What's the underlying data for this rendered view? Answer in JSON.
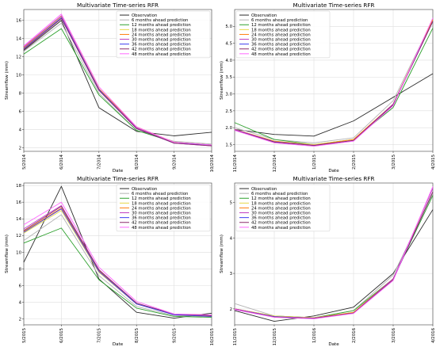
{
  "legend_labels": [
    "Observation",
    "6 months ahead prediction",
    "12 months ahead prediction",
    "18 months ahead prediction",
    "24 months ahead prediction",
    "30 months ahead prediction",
    "36 months ahead prediction",
    "42 months ahead prediction",
    "48 months ahead prediction"
  ],
  "series_colors": [
    "#2b2b2b",
    "#b3b3b3",
    "#2ca02c",
    "#e6d94a",
    "#ff7f0e",
    "#c03cc0",
    "#3c3cf0",
    "#8b2a6b",
    "#ff66ff"
  ],
  "chart_data": [
    {
      "type": "line",
      "title": "Multivariate Time-series RFR",
      "xlabel": "Date",
      "ylabel": "Streamflow (mm)",
      "categories": [
        "5/2014",
        "6/2014",
        "7/2014",
        "8/2014",
        "9/2014",
        "10/2014"
      ],
      "ylim": [
        1.6,
        17.2
      ],
      "yticks": [
        2,
        4,
        6,
        8,
        10,
        12,
        14,
        16
      ],
      "ytick_labels": [
        "2",
        "4",
        "6",
        "8",
        "10",
        "12",
        "14",
        "16"
      ],
      "grid": true,
      "legend_position": "top-right",
      "series": [
        {
          "name": "Observation",
          "values": [
            12.7,
            16.0,
            6.4,
            3.8,
            3.3,
            3.7
          ]
        },
        {
          "name": "6 months ahead prediction",
          "values": [
            12.6,
            15.7,
            8.0,
            3.9,
            2.7,
            2.4
          ]
        },
        {
          "name": "12 months ahead prediction",
          "values": [
            12.3,
            15.1,
            7.8,
            3.9,
            2.6,
            2.3
          ]
        },
        {
          "name": "18 months ahead prediction",
          "values": [
            12.9,
            16.4,
            8.4,
            4.2,
            2.5,
            2.3
          ]
        },
        {
          "name": "24 months ahead prediction",
          "values": [
            13.0,
            16.5,
            8.5,
            4.3,
            2.6,
            2.3
          ]
        },
        {
          "name": "30 months ahead prediction",
          "values": [
            13.1,
            16.5,
            8.4,
            4.2,
            2.5,
            2.2
          ]
        },
        {
          "name": "36 months ahead prediction",
          "values": [
            12.9,
            16.3,
            8.4,
            4.1,
            2.5,
            2.3
          ]
        },
        {
          "name": "42 months ahead prediction",
          "values": [
            12.8,
            16.2,
            8.3,
            4.1,
            2.5,
            2.2
          ]
        },
        {
          "name": "48 months ahead prediction",
          "values": [
            13.2,
            16.7,
            8.7,
            4.3,
            2.6,
            2.3
          ]
        }
      ]
    },
    {
      "type": "line",
      "title": "Multivariate Time-series RFR",
      "xlabel": "Date",
      "ylabel": "Streamflow (mm)",
      "categories": [
        "11/2014",
        "12/2014",
        "1/2015",
        "2/2015",
        "3/2015",
        "4/2015"
      ],
      "ylim": [
        1.3,
        5.5
      ],
      "yticks": [
        1.5,
        2.0,
        2.5,
        3.0,
        3.5,
        4.0,
        4.5,
        5.0
      ],
      "ytick_labels": [
        "1.5",
        "2.0",
        "2.5",
        "3.0",
        "3.5",
        "4.0",
        "4.5",
        "5.0"
      ],
      "grid": true,
      "legend_position": "top-left",
      "series": [
        {
          "name": "Observation",
          "values": [
            1.95,
            1.8,
            1.75,
            2.2,
            2.9,
            3.6
          ]
        },
        {
          "name": "6 months ahead prediction",
          "values": [
            2.0,
            1.65,
            1.55,
            1.7,
            2.8,
            5.2
          ]
        },
        {
          "name": "12 months ahead prediction",
          "values": [
            2.15,
            1.65,
            1.5,
            1.65,
            2.6,
            4.95
          ]
        },
        {
          "name": "18 months ahead prediction",
          "values": [
            1.95,
            1.6,
            1.5,
            1.65,
            2.7,
            5.2
          ]
        },
        {
          "name": "24 months ahead prediction",
          "values": [
            1.95,
            1.6,
            1.48,
            1.65,
            2.7,
            5.2
          ]
        },
        {
          "name": "30 months ahead prediction",
          "values": [
            1.95,
            1.58,
            1.48,
            1.62,
            2.7,
            5.15
          ]
        },
        {
          "name": "36 months ahead prediction",
          "values": [
            1.93,
            1.58,
            1.47,
            1.62,
            2.68,
            5.15
          ]
        },
        {
          "name": "42 months ahead prediction",
          "values": [
            1.93,
            1.57,
            1.47,
            1.62,
            2.68,
            5.15
          ]
        },
        {
          "name": "48 months ahead prediction",
          "values": [
            1.92,
            1.55,
            1.45,
            1.6,
            2.65,
            5.25
          ]
        }
      ]
    },
    {
      "type": "line",
      "title": "Multivariate Time-series RFR",
      "xlabel": "Date",
      "ylabel": "Streamflow (mm)",
      "categories": [
        "5/2015",
        "6/2015",
        "7/2015",
        "8/2015",
        "9/2015",
        "10/2015"
      ],
      "ylim": [
        1.3,
        18.3
      ],
      "yticks": [
        2,
        4,
        6,
        8,
        10,
        12,
        14,
        16,
        18
      ],
      "ytick_labels": [
        "2",
        "4",
        "6",
        "8",
        "10",
        "12",
        "14",
        "16",
        "18"
      ],
      "grid": true,
      "legend_position": "top-right",
      "series": [
        {
          "name": "Observation",
          "values": [
            8.8,
            17.9,
            6.8,
            2.8,
            2.1,
            2.7
          ]
        },
        {
          "name": "6 months ahead prediction",
          "values": [
            11.4,
            14.5,
            7.2,
            3.5,
            2.4,
            2.3
          ]
        },
        {
          "name": "12 months ahead prediction",
          "values": [
            11.1,
            12.9,
            6.7,
            3.3,
            2.3,
            2.2
          ]
        },
        {
          "name": "18 months ahead prediction",
          "values": [
            12.3,
            15.0,
            7.6,
            3.8,
            2.5,
            2.3
          ]
        },
        {
          "name": "24 months ahead prediction",
          "values": [
            12.5,
            15.3,
            7.8,
            3.9,
            2.5,
            2.3
          ]
        },
        {
          "name": "30 months ahead prediction",
          "values": [
            12.8,
            15.6,
            7.9,
            3.9,
            2.5,
            2.4
          ]
        },
        {
          "name": "36 months ahead prediction",
          "values": [
            12.4,
            15.2,
            7.7,
            3.8,
            2.5,
            2.3
          ]
        },
        {
          "name": "42 months ahead prediction",
          "values": [
            12.6,
            15.5,
            7.9,
            3.9,
            2.6,
            2.4
          ]
        },
        {
          "name": "48 months ahead prediction",
          "values": [
            13.3,
            16.0,
            8.2,
            4.1,
            2.6,
            2.5
          ]
        }
      ]
    },
    {
      "type": "line",
      "title": "Multivariate Time-series RFR",
      "xlabel": "Date",
      "ylabel": "Streamflow (mm)",
      "categories": [
        "11/2015",
        "12/2015",
        "1/2016",
        "2/2016",
        "3/2016",
        "4/2016"
      ],
      "ylim": [
        1.55,
        5.55
      ],
      "yticks": [
        2,
        3,
        4,
        5
      ],
      "ytick_labels": [
        "2",
        "3",
        "4",
        "5"
      ],
      "grid": true,
      "legend_position": "top-left",
      "series": [
        {
          "name": "Observation",
          "values": [
            1.95,
            1.65,
            1.8,
            2.05,
            3.0,
            4.8
          ]
        },
        {
          "name": "6 months ahead prediction",
          "values": [
            2.15,
            1.8,
            1.75,
            1.95,
            2.95,
            5.25
          ]
        },
        {
          "name": "12 months ahead prediction",
          "values": [
            2.0,
            1.8,
            1.75,
            1.95,
            2.85,
            5.2
          ]
        },
        {
          "name": "18 months ahead prediction",
          "values": [
            2.0,
            1.8,
            1.75,
            1.9,
            2.85,
            5.3
          ]
        },
        {
          "name": "24 months ahead prediction",
          "values": [
            2.0,
            1.78,
            1.74,
            1.9,
            2.85,
            5.3
          ]
        },
        {
          "name": "30 months ahead prediction",
          "values": [
            2.0,
            1.78,
            1.74,
            1.88,
            2.85,
            5.4
          ]
        },
        {
          "name": "36 months ahead prediction",
          "values": [
            1.98,
            1.78,
            1.73,
            1.88,
            2.82,
            5.3
          ]
        },
        {
          "name": "42 months ahead prediction",
          "values": [
            1.98,
            1.77,
            1.73,
            1.88,
            2.82,
            5.3
          ]
        },
        {
          "name": "48 months ahead prediction",
          "values": [
            1.98,
            1.76,
            1.72,
            1.87,
            2.8,
            5.45
          ]
        }
      ]
    }
  ]
}
